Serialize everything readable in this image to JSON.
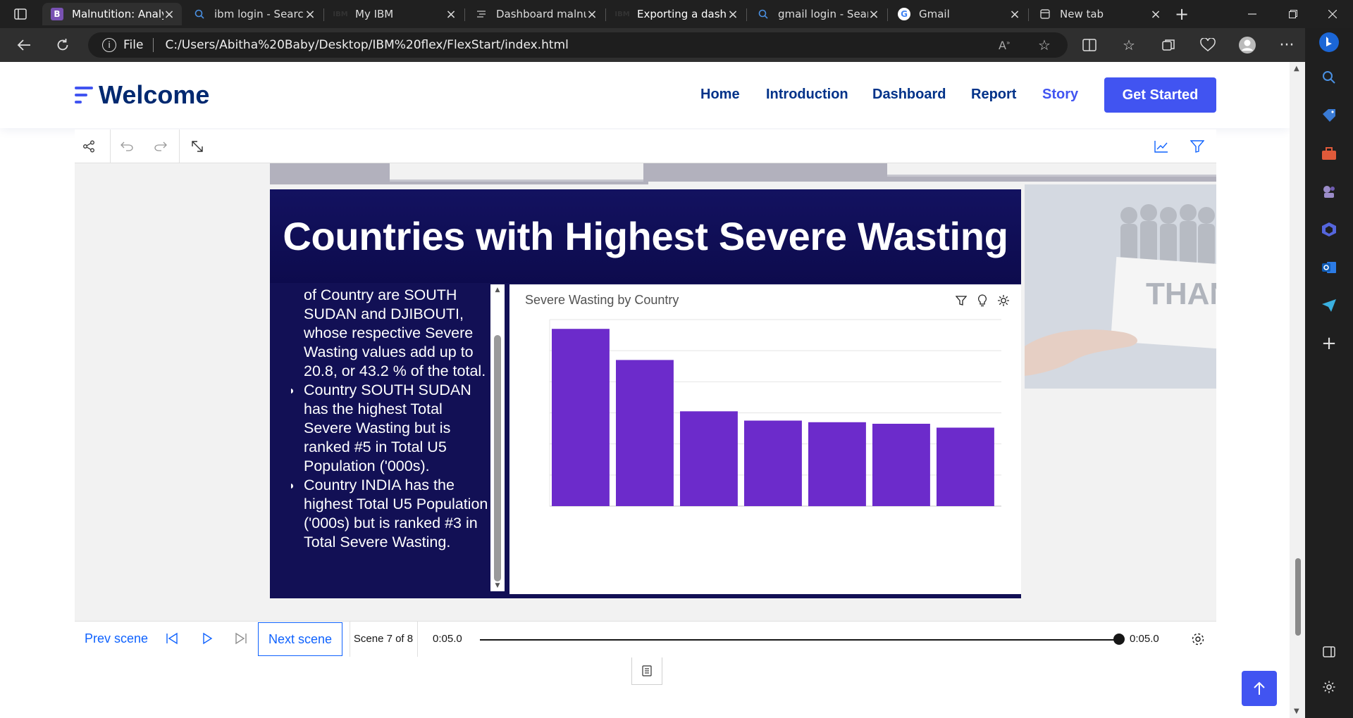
{
  "tabs": [
    {
      "title": "Malnutition: Analy",
      "favicon": "B",
      "active": true
    },
    {
      "title": "ibm login - Search",
      "favicon": "search-icon",
      "active": false
    },
    {
      "title": "My IBM",
      "favicon": "ibm-icon",
      "active": false
    },
    {
      "title": "Dashboard malnu",
      "favicon": "dashboard-icon",
      "active": false
    },
    {
      "title": "Exporting a dashb",
      "favicon": "ibm-icon",
      "active": false
    },
    {
      "title": "gmail login - Sear",
      "favicon": "search-icon",
      "active": false
    },
    {
      "title": "Gmail",
      "favicon": "google-icon",
      "active": false
    },
    {
      "title": "New tab",
      "favicon": "newtab-icon",
      "active": false
    }
  ],
  "address": {
    "scheme_label": "File",
    "url": "C:/Users/Abitha%20Baby/Desktop/IBM%20flex/FlexStart/index.html"
  },
  "site": {
    "logo_text": "Welcome",
    "nav": [
      {
        "label": "Home",
        "active": false
      },
      {
        "label": "Introduction",
        "active": false
      },
      {
        "label": "Dashboard",
        "active": false
      },
      {
        "label": "Report",
        "active": false
      },
      {
        "label": "Story",
        "active": true
      }
    ],
    "cta": "Get Started",
    "brand_color": "#4154f1",
    "nav_color": "#013289"
  },
  "scene": {
    "title": "Countries with Highest Severe Wasting",
    "insight_intro": "of Country are SOUTH SUDAN and DJIBOUTI, whose respective Severe Wasting values add up to 20.8, or 43.2 % of the total.",
    "insight_bullets": [
      "Country SOUTH SUDAN has the highest Total Severe Wasting but is ranked #5 in Total U5 Population ('000s).",
      "Country INDIA has the highest Total U5 Population ('000s) but is ranked #3 in Total Severe Wasting."
    ],
    "chart_title": "Severe Wasting by Country",
    "side_image_text": "THANK YOU"
  },
  "chart_data": {
    "type": "bar",
    "title": "Severe Wasting by Country",
    "categories": [
      "",
      "",
      "",
      "",
      "",
      "",
      ""
    ],
    "values": [
      11.4,
      9.4,
      6.1,
      5.5,
      5.4,
      5.3,
      5.05
    ],
    "ylim": [
      0,
      12
    ],
    "grid": true,
    "bar_color": "#6c2bcb"
  },
  "playback": {
    "prev_label": "Prev scene",
    "next_label": "Next scene",
    "scene_counter": "Scene 7 of 8",
    "time_current": "0:05.0",
    "time_total": "0:05.0",
    "progress": 1.0
  }
}
